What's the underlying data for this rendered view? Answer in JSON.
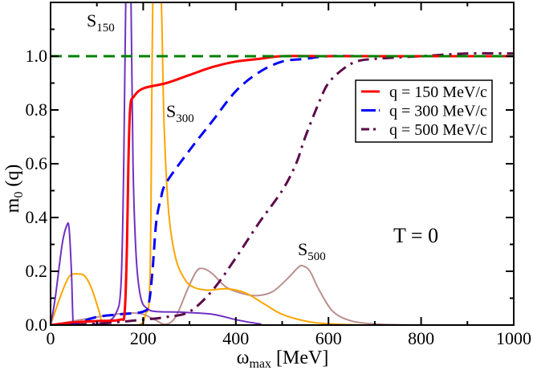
{
  "chart_data": {
    "type": "line",
    "xlabel": {
      "main": "ω",
      "sub": "max",
      "rest": " [MeV]"
    },
    "ylabel": {
      "main": "m",
      "sub": "0",
      "rest": " (q)"
    },
    "xlim": [
      0,
      1000
    ],
    "ylim": [
      0,
      1.2
    ],
    "xticks": [
      0,
      200,
      400,
      600,
      800,
      1000
    ],
    "xtick_labels": [
      "0",
      "200",
      "400",
      "600",
      "800",
      "1000"
    ],
    "yticks": [
      0,
      0.2,
      0.4,
      0.6,
      0.8,
      1.0
    ],
    "ytick_labels": [
      "0.0",
      "0.2",
      "0.4",
      "0.6",
      "0.8",
      "1.0"
    ],
    "grid": false,
    "legend_position": "upper-right",
    "reference_line": {
      "y": 1.0,
      "color": "#008000",
      "style": "dashed"
    },
    "series": [
      {
        "name": "q = 150 MeV/c",
        "color": "#ff0000",
        "style": "solid",
        "legend": true,
        "x": [
          0,
          50,
          100,
          150,
          160,
          165,
          168,
          172,
          180,
          200,
          250,
          300,
          350,
          400,
          450,
          500,
          600,
          700,
          800,
          900,
          1000
        ],
        "y": [
          0,
          0.01,
          0.015,
          0.02,
          0.05,
          0.3,
          0.6,
          0.81,
          0.85,
          0.88,
          0.9,
          0.93,
          0.96,
          0.98,
          0.99,
          1.0,
          1.0,
          1.0,
          1.0,
          1.0,
          1.0
        ]
      },
      {
        "name": "q = 300 MeV/c",
        "color": "#0000ff",
        "style": "dashed",
        "legend": true,
        "x": [
          0,
          50,
          100,
          150,
          200,
          212,
          220,
          228,
          238,
          250,
          300,
          350,
          400,
          450,
          500,
          550,
          600,
          700,
          800,
          1000
        ],
        "y": [
          0,
          0.005,
          0.03,
          0.04,
          0.05,
          0.08,
          0.2,
          0.38,
          0.47,
          0.53,
          0.65,
          0.76,
          0.87,
          0.94,
          0.98,
          0.99,
          1.0,
          1.0,
          1.0,
          1.0
        ]
      },
      {
        "name": "q = 500 MeV/c",
        "color": "#5c0a4a",
        "style": "dashdot",
        "legend": true,
        "x": [
          0,
          100,
          200,
          250,
          300,
          350,
          400,
          450,
          500,
          530,
          550,
          580,
          600,
          630,
          660,
          700,
          800,
          900,
          1000
        ],
        "y": [
          0,
          0.005,
          0.02,
          0.03,
          0.05,
          0.13,
          0.25,
          0.38,
          0.5,
          0.6,
          0.7,
          0.83,
          0.9,
          0.95,
          0.98,
          0.99,
          1.0,
          1.01,
          1.01
        ]
      },
      {
        "name": "S150",
        "color": "#7030c0",
        "style": "solid",
        "legend": false,
        "x": [
          0,
          10,
          25,
          35,
          40,
          45,
          49,
          55,
          80,
          115,
          140,
          152,
          158,
          163,
          168,
          173,
          178,
          185,
          195,
          210,
          230,
          280,
          350,
          400,
          450,
          500,
          1000
        ],
        "y": [
          0,
          0.1,
          0.3,
          0.37,
          0.36,
          0.2,
          0.0,
          0.0,
          0.0,
          0.01,
          0.04,
          0.15,
          0.6,
          1.3,
          1.3,
          1.3,
          0.6,
          0.25,
          0.1,
          0.06,
          0.05,
          0.048,
          0.04,
          0.02,
          0.005,
          0.0,
          0.0
        ]
      },
      {
        "name": "S300",
        "color": "#ffa500",
        "style": "solid",
        "legend": false,
        "x": [
          0,
          20,
          40,
          60,
          75,
          90,
          105,
          115,
          150,
          190,
          205,
          215,
          222,
          237,
          245,
          255,
          270,
          290,
          310,
          340,
          380,
          420,
          460,
          500,
          550,
          600,
          700,
          1000
        ],
        "y": [
          0,
          0.1,
          0.18,
          0.19,
          0.18,
          0.13,
          0.05,
          0.0,
          0.0,
          0.0,
          0.04,
          0.2,
          1.3,
          1.3,
          0.75,
          0.42,
          0.25,
          0.17,
          0.14,
          0.13,
          0.135,
          0.12,
          0.08,
          0.04,
          0.015,
          0.005,
          0.0,
          0.0
        ]
      },
      {
        "name": "S500",
        "color": "#bc8f8f",
        "style": "solid",
        "legend": false,
        "x": [
          0,
          50,
          100,
          150,
          175,
          200,
          225,
          248,
          270,
          295,
          315,
          330,
          350,
          380,
          420,
          450,
          480,
          510,
          535,
          545,
          560,
          580,
          610,
          650,
          700,
          750,
          800,
          1000
        ],
        "y": [
          0,
          0.015,
          0.03,
          0.042,
          0.045,
          0.04,
          0.02,
          0.003,
          0.03,
          0.13,
          0.2,
          0.21,
          0.19,
          0.14,
          0.115,
          0.11,
          0.125,
          0.17,
          0.215,
          0.22,
          0.2,
          0.13,
          0.05,
          0.015,
          0.004,
          0.001,
          0.0,
          0.0
        ]
      }
    ],
    "annotations": [
      {
        "main": "S",
        "sub": "150"
      },
      {
        "main": "S",
        "sub": "300"
      },
      {
        "main": "S",
        "sub": "500"
      },
      {
        "main": "T = 0",
        "sub": ""
      }
    ]
  }
}
